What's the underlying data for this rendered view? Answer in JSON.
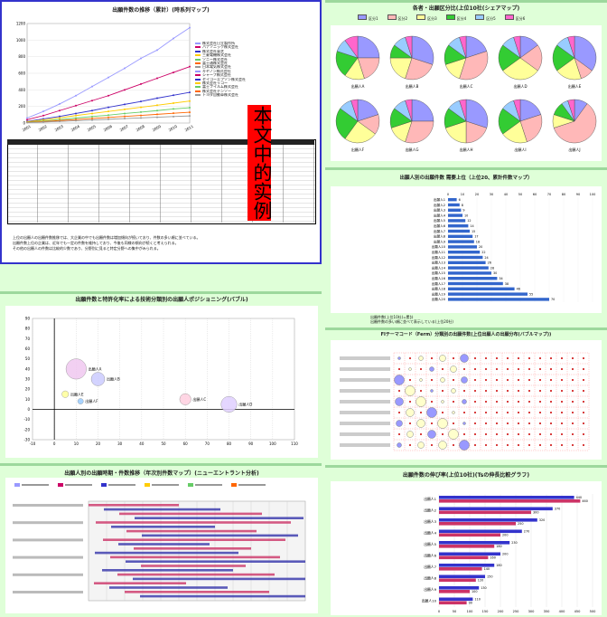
{
  "panels": {
    "trend_title": "出願件数の推移（累計）(時系列マップ)",
    "kind_title": "各者・出願区分比(上位10社(シェアマップ)",
    "rank_title": "出願人別の出願件数 需要上位（上位20、累計件数マップ）",
    "bubble_title": "出願件数と特許化率による技術分類別の出願人ポジショニング(バブル)",
    "fi_title": "FIテーマコード（Ferm）分類別の出願件数(上位出願人の出願分布(バブルマップ))",
    "time_title": "出願人別の出願時期・件数推移（年次別件数マップ）(ニューエントラント分析)",
    "growth_title": "出願件数の伸び率(上位10社)(Tsの伸長比較グラフ)"
  },
  "stamp": "本文中的实例",
  "notes": [
    "上位の出願人の出願件数推移では、大企業の中でも出願件数は増加傾向が続いており、件数の多い順に並べている。",
    "出願件数上位の企業は、近年でも一定の件数を維持しており、今後も同様の傾向が続くと考えられる。",
    "その他の出願人の件数は比較的少数であり、分野別に見ると特定分野への集中がみられる。"
  ],
  "summary_lines": [
    "出願件数(上位10社)=累計",
    "出願件数の多い順に並べて表示している(上位20社)"
  ],
  "chart_data": [
    {
      "type": "line",
      "title": "出願件数の推移（累計）",
      "x": [
        "2001",
        "2002",
        "2003",
        "2004",
        "2005",
        "2006",
        "2007",
        "2008",
        "2009",
        "2010",
        "2011"
      ],
      "series": [
        {
          "name": "出願人A",
          "values": [
            60,
            140,
            230,
            330,
            440,
            550,
            660,
            780,
            880,
            1020,
            1150
          ]
        },
        {
          "name": "出願人B",
          "values": [
            40,
            90,
            150,
            210,
            270,
            330,
            400,
            470,
            540,
            610,
            680
          ]
        },
        {
          "name": "出願人C",
          "values": [
            20,
            50,
            80,
            115,
            150,
            190,
            225,
            260,
            300,
            335,
            370
          ]
        },
        {
          "name": "出願人D",
          "values": [
            15,
            38,
            62,
            90,
            115,
            140,
            165,
            190,
            215,
            240,
            265
          ]
        },
        {
          "name": "出願人E",
          "values": [
            10,
            25,
            42,
            60,
            78,
            95,
            115,
            132,
            150,
            170,
            185
          ]
        },
        {
          "name": "出願人F",
          "values": [
            8,
            18,
            30,
            42,
            55,
            68,
            80,
            92,
            105,
            118,
            130
          ]
        },
        {
          "name": "出願人G",
          "values": [
            5,
            12,
            20,
            28,
            36,
            45,
            54,
            62,
            70,
            78,
            86
          ]
        }
      ],
      "legend": [
        "株式会社日立製作所",
        "パナソニック株式会社",
        "株式会社東芝",
        "三菱電機株式会社",
        "ソニー株式会社",
        "富士通株式会社",
        "日本電気株式会社",
        "キヤノン株式会社",
        "シャープ株式会社",
        "セイコーエプソン株式会社",
        "株式会社リコー",
        "富士フイルム株式会社",
        "株式会社デンソー",
        "トヨタ自動車株式会社"
      ],
      "ylim": [
        0,
        1200
      ]
    },
    {
      "type": "pie",
      "title": "各者・出願区分比",
      "legend": [
        "区分1",
        "区分2",
        "区分3",
        "区分4",
        "区分5",
        "区分6"
      ],
      "colors": [
        "#9999ff",
        "#ffb8b8",
        "#ffff99",
        "#33cc33",
        "#99ccff",
        "#ff66cc"
      ],
      "pies": [
        {
          "name": "出願人A",
          "values": [
            25,
            20,
            15,
            20,
            10,
            10
          ]
        },
        {
          "name": "出願人B",
          "values": [
            30,
            25,
            20,
            10,
            10,
            5
          ]
        },
        {
          "name": "出願人C",
          "values": [
            20,
            35,
            15,
            15,
            10,
            5
          ]
        },
        {
          "name": "出願人D",
          "values": [
            15,
            20,
            30,
            20,
            10,
            5
          ]
        },
        {
          "name": "出願人E",
          "values": [
            35,
            10,
            20,
            20,
            10,
            5
          ]
        },
        {
          "name": "出願人F",
          "values": [
            20,
            15,
            25,
            25,
            10,
            5
          ]
        },
        {
          "name": "出願人G",
          "values": [
            25,
            30,
            15,
            15,
            10,
            5
          ]
        },
        {
          "name": "出願人H",
          "values": [
            30,
            20,
            20,
            15,
            10,
            5
          ]
        },
        {
          "name": "出願人I",
          "values": [
            20,
            25,
            20,
            20,
            10,
            5
          ]
        },
        {
          "name": "出願人J",
          "values": [
            10,
            60,
            10,
            10,
            5,
            5
          ]
        }
      ]
    },
    {
      "type": "bar",
      "title": "出願人別の出願件数",
      "categories": [
        "出願人1",
        "出願人2",
        "出願人3",
        "出願人4",
        "出願人5",
        "出願人6",
        "出願人7",
        "出願人8",
        "出願人9",
        "出願人10",
        "出願人11",
        "出願人12",
        "出願人13",
        "出願人14",
        "出願人15",
        "出願人16",
        "出願人17",
        "出願人18",
        "出願人19",
        "出願人20"
      ],
      "values": [
        6,
        8,
        9,
        10,
        12,
        14,
        15,
        17,
        18,
        20,
        22,
        24,
        26,
        28,
        30,
        34,
        38,
        46,
        55,
        70
      ],
      "xlim": [
        0,
        100
      ]
    },
    {
      "type": "scatter",
      "title": "出願件数と特許化率のバブル",
      "points": [
        {
          "name": "出願人A",
          "x": 10,
          "y": 40,
          "size": 18
        },
        {
          "name": "出願人B",
          "x": 20,
          "y": 30,
          "size": 12
        },
        {
          "name": "出願人C",
          "x": 60,
          "y": 10,
          "size": 10
        },
        {
          "name": "出願人D",
          "x": 80,
          "y": 5,
          "size": 14
        },
        {
          "name": "出願人E",
          "x": 5,
          "y": 15,
          "size": 6
        },
        {
          "name": "出願人F",
          "x": 12,
          "y": 8,
          "size": 5
        }
      ],
      "xlim": [
        -10,
        110
      ],
      "ylim": [
        -30,
        90
      ]
    },
    {
      "type": "bar",
      "title": "出願件数の伸び率(上位10社)",
      "categories": [
        "出願人1",
        "出願人2",
        "出願人3",
        "出願人4",
        "出願人5",
        "出願人6",
        "出願人7",
        "出願人8",
        "出願人9",
        "出願人10"
      ],
      "series": [
        {
          "name": "前期",
          "values": [
            440,
            370,
            320,
            270,
            230,
            200,
            180,
            150,
            130,
            110
          ]
        },
        {
          "name": "後期",
          "values": [
            460,
            300,
            250,
            200,
            180,
            160,
            140,
            120,
            100,
            90
          ]
        }
      ],
      "xlim": [
        0,
        500
      ]
    }
  ]
}
